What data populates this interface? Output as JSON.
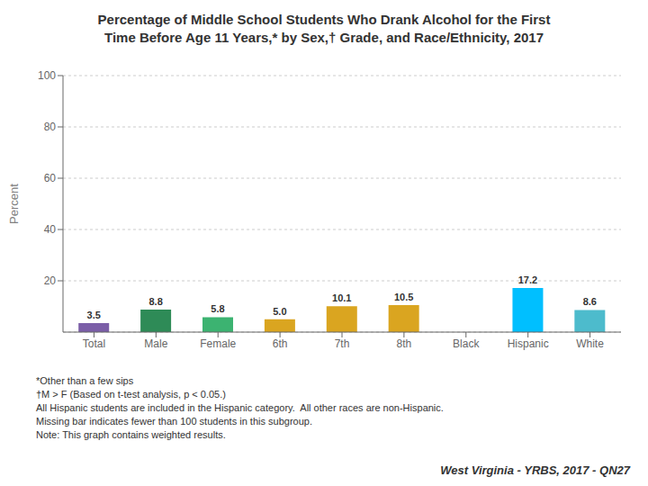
{
  "chart_data": {
    "type": "bar",
    "title": "Percentage of Middle School Students Who Drank Alcohol for the First\nTime Before Age 11 Years,* by Sex,† Grade, and Race/Ethnicity, 2017",
    "categories": [
      "Total",
      "Male",
      "Female",
      "6th",
      "7th",
      "8th",
      "Black",
      "Hispanic",
      "White"
    ],
    "values": [
      3.5,
      8.8,
      5.8,
      5.0,
      10.1,
      10.5,
      null,
      17.2,
      8.6
    ],
    "value_labels": [
      "3.5",
      "8.8",
      "5.8",
      "5.0",
      "10.1",
      "10.5",
      null,
      "17.2",
      "8.6"
    ],
    "data_labels": true,
    "colors": [
      "#7B5EA7",
      "#2E8B57",
      "#3CB371",
      "#DAA520",
      "#DAA520",
      "#DAA520",
      null,
      "#00BFFF",
      "#4DBBCC"
    ],
    "y_label": "Percent",
    "ylim": [
      0,
      100
    ],
    "yticks": [
      20,
      40,
      60,
      80,
      100
    ],
    "grid": true,
    "annotations": [
      "*Other than a few sips\n†M > F (Based on t-test analysis, p < 0.05.)\nAll Hispanic students are included in the Hispanic category.  All other races are non-Hispanic.\nMissing bar indicates fewer than 100 students in this subgroup.\nNote: This graph contains weighted results.",
      "West Virginia - YRBS, 2017 - QN27"
    ]
  }
}
